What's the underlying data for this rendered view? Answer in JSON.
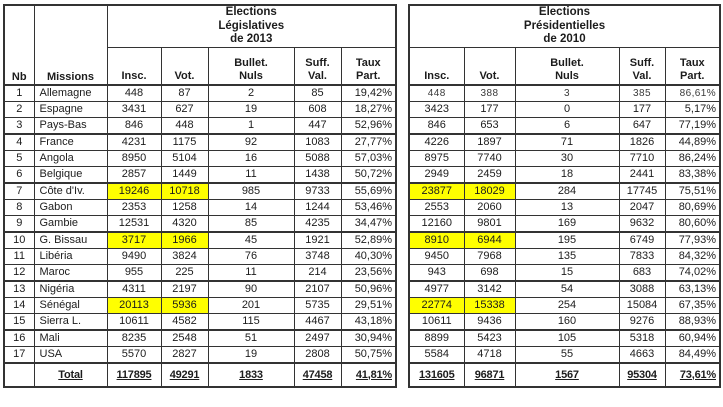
{
  "styles": {
    "highlight_color": "#ffff00",
    "line_color": "#333333",
    "text_color": "#1c1c1c",
    "page_background": "#ffffff"
  },
  "left_table": {
    "title_lines": [
      "Elections",
      "Législatives",
      "de 2013"
    ]
  },
  "right_table": {
    "title_lines": [
      "Elections",
      "Présidentielles",
      "de 2010"
    ]
  },
  "corner_headers": {
    "nb": "Nb",
    "missions": "Missions"
  },
  "col_headers": [
    {
      "l1": "Insc."
    },
    {
      "l1": "Vot."
    },
    {
      "l1": "Bullet.",
      "l2": "Nuls"
    },
    {
      "l1": "Suff.",
      "l2": "Val."
    },
    {
      "l1": "Taux",
      "l2": "Part."
    }
  ],
  "rows": [
    {
      "nb": "1",
      "mission": "Allemagne",
      "leg": [
        "448",
        "87",
        "2",
        "85",
        "19,42%"
      ],
      "pres": [
        "448",
        "388",
        "3",
        "385",
        "86,61%"
      ],
      "highlight": false
    },
    {
      "nb": "2",
      "mission": "Espagne",
      "leg": [
        "3431",
        "627",
        "19",
        "608",
        "18,27%"
      ],
      "pres": [
        "3423",
        "177",
        "0",
        "177",
        "5,17%"
      ],
      "highlight": false
    },
    {
      "nb": "3",
      "mission": "Pays-Bas",
      "leg": [
        "846",
        "448",
        "1",
        "447",
        "52,96%"
      ],
      "pres": [
        "846",
        "653",
        "6",
        "647",
        "77,19%"
      ],
      "highlight": false
    },
    {
      "nb": "4",
      "mission": "France",
      "leg": [
        "4231",
        "1175",
        "92",
        "1083",
        "27,77%"
      ],
      "pres": [
        "4226",
        "1897",
        "71",
        "1826",
        "44,89%"
      ],
      "highlight": false
    },
    {
      "nb": "5",
      "mission": "Angola",
      "leg": [
        "8950",
        "5104",
        "16",
        "5088",
        "57,03%"
      ],
      "pres": [
        "8975",
        "7740",
        "30",
        "7710",
        "86,24%"
      ],
      "highlight": false
    },
    {
      "nb": "6",
      "mission": "Belgique",
      "leg": [
        "2857",
        "1449",
        "11",
        "1438",
        "50,72%"
      ],
      "pres": [
        "2949",
        "2459",
        "18",
        "2441",
        "83,38%"
      ],
      "highlight": false
    },
    {
      "nb": "7",
      "mission": "Côte d'Iv.",
      "leg": [
        "19246",
        "10718",
        "985",
        "9733",
        "55,69%"
      ],
      "pres": [
        "23877",
        "18029",
        "284",
        "17745",
        "75,51%"
      ],
      "highlight": true
    },
    {
      "nb": "8",
      "mission": "Gabon",
      "leg": [
        "2353",
        "1258",
        "14",
        "1244",
        "53,46%"
      ],
      "pres": [
        "2553",
        "2060",
        "13",
        "2047",
        "80,69%"
      ],
      "highlight": false
    },
    {
      "nb": "9",
      "mission": "Gambie",
      "leg": [
        "12531",
        "4320",
        "85",
        "4235",
        "34,47%"
      ],
      "pres": [
        "12160",
        "9801",
        "169",
        "9632",
        "80,60%"
      ],
      "highlight": false
    },
    {
      "nb": "10",
      "mission": "G. Bissau",
      "leg": [
        "3717",
        "1966",
        "45",
        "1921",
        "52,89%"
      ],
      "pres": [
        "8910",
        "6944",
        "195",
        "6749",
        "77,93%"
      ],
      "highlight": true
    },
    {
      "nb": "11",
      "mission": "Libéria",
      "leg": [
        "9490",
        "3824",
        "76",
        "3748",
        "40,30%"
      ],
      "pres": [
        "9450",
        "7968",
        "135",
        "7833",
        "84,32%"
      ],
      "highlight": false
    },
    {
      "nb": "12",
      "mission": "Maroc",
      "leg": [
        "955",
        "225",
        "11",
        "214",
        "23,56%"
      ],
      "pres": [
        "943",
        "698",
        "15",
        "683",
        "74,02%"
      ],
      "highlight": false
    },
    {
      "nb": "13",
      "mission": "Nigéria",
      "leg": [
        "4311",
        "2197",
        "90",
        "2107",
        "50,96%"
      ],
      "pres": [
        "4977",
        "3142",
        "54",
        "3088",
        "63,13%"
      ],
      "highlight": false
    },
    {
      "nb": "14",
      "mission": "Sénégal",
      "leg": [
        "20113",
        "5936",
        "201",
        "5735",
        "29,51%"
      ],
      "pres": [
        "22774",
        "15338",
        "254",
        "15084",
        "67,35%"
      ],
      "highlight": true
    },
    {
      "nb": "15",
      "mission": "Sierra L.",
      "leg": [
        "10611",
        "4582",
        "115",
        "4467",
        "43,18%"
      ],
      "pres": [
        "10611",
        "9436",
        "160",
        "9276",
        "88,93%"
      ],
      "highlight": false
    },
    {
      "nb": "16",
      "mission": "Mali",
      "leg": [
        "8235",
        "2548",
        "51",
        "2497",
        "30,94%"
      ],
      "pres": [
        "8899",
        "5423",
        "105",
        "5318",
        "60,94%"
      ],
      "highlight": false
    },
    {
      "nb": "17",
      "mission": "USA",
      "leg": [
        "5570",
        "2827",
        "19",
        "2808",
        "50,75%"
      ],
      "pres": [
        "5584",
        "4718",
        "55",
        "4663",
        "84,49%"
      ],
      "highlight": false
    }
  ],
  "totals": {
    "label": "Total",
    "leg": [
      "117895",
      "49291",
      "1833",
      "47458",
      "41,81%"
    ],
    "pres": [
      "131605",
      "96871",
      "1567",
      "95304",
      "73,61%"
    ]
  }
}
